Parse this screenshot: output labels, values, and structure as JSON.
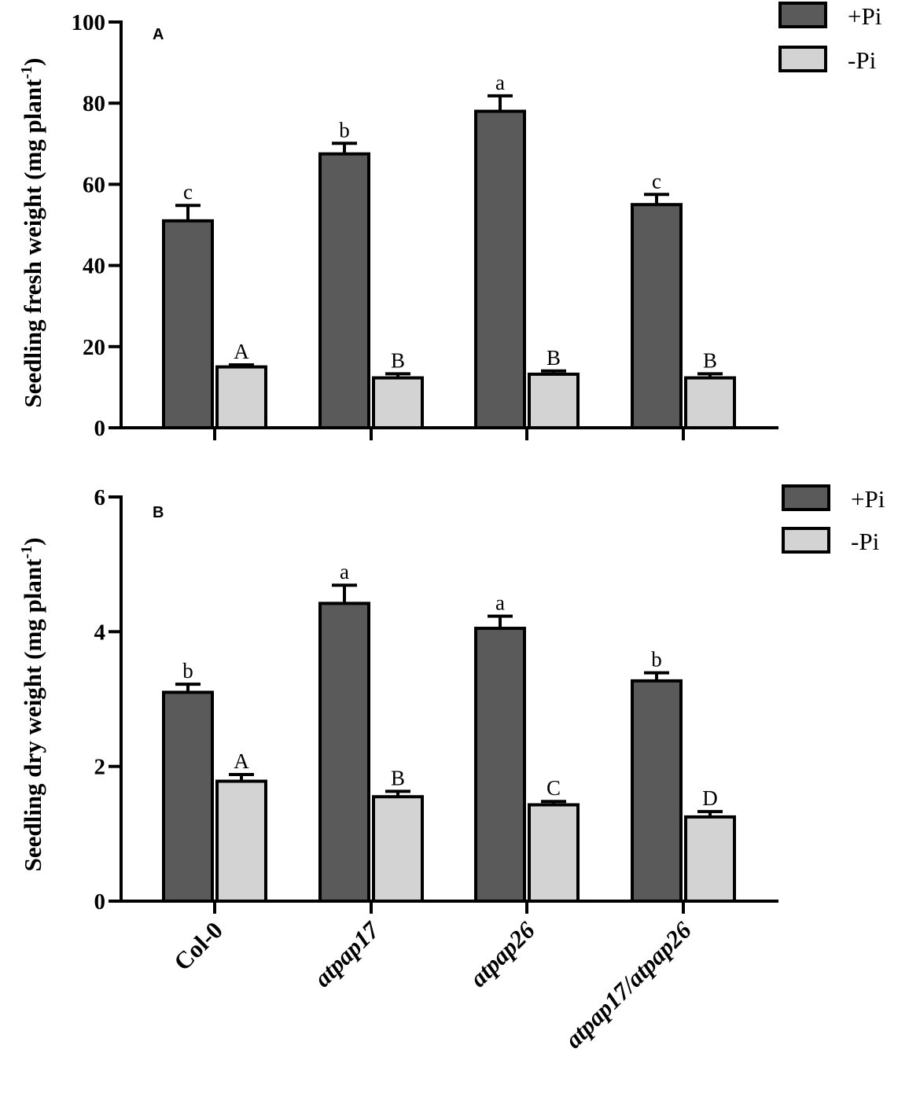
{
  "chart_data": [
    {
      "panel": "A",
      "type": "bar",
      "categories": [
        "Col-0",
        "atpap17",
        "atpap26",
        "atpap17/atpap26"
      ],
      "series": [
        {
          "name": "+Pi",
          "color": "#5a5a5a",
          "values": [
            51,
            67.5,
            78,
            55
          ],
          "errors": [
            3.8,
            2.6,
            3.8,
            2.5
          ],
          "letters": [
            "c",
            "b",
            "a",
            "c"
          ]
        },
        {
          "name": "-Pi",
          "color": "#d3d3d3",
          "values": [
            15,
            12.3,
            13.2,
            12.3
          ],
          "errors": [
            0.5,
            1.0,
            0.8,
            1.0
          ],
          "letters": [
            "A",
            "B",
            "B",
            "B"
          ]
        }
      ],
      "ylabel": "Seedling fresh weight (mg plant⁻¹)",
      "ylabel_main": "Seedling fresh weight (mg plant",
      "ylabel_sup": "-1",
      "ylabel_end": ")",
      "ylim": [
        0,
        100
      ],
      "yticks": [
        "0",
        "20",
        "40",
        "60",
        "80",
        "100"
      ],
      "legend": "top-right"
    },
    {
      "panel": "B",
      "type": "bar",
      "categories": [
        "Col-0",
        "atpap17",
        "atpap26",
        "atpap17/atpap26"
      ],
      "series": [
        {
          "name": "+Pi",
          "color": "#5a5a5a",
          "values": [
            3.1,
            4.42,
            4.05,
            3.27
          ],
          "errors": [
            0.12,
            0.27,
            0.18,
            0.12
          ],
          "letters": [
            "b",
            "a",
            "a",
            "b"
          ]
        },
        {
          "name": "-Pi",
          "color": "#d3d3d3",
          "values": [
            1.78,
            1.55,
            1.43,
            1.25
          ],
          "errors": [
            0.1,
            0.08,
            0.05,
            0.08
          ],
          "letters": [
            "A",
            "B",
            "C",
            "D"
          ]
        }
      ],
      "ylabel": "Seedling dry weight (mg plant⁻¹)",
      "ylabel_main": "Seedling dry weight (mg plant",
      "ylabel_sup": "-1",
      "ylabel_end": ")",
      "ylim": [
        0,
        6
      ],
      "yticks": [
        "0",
        "2",
        "4",
        "6"
      ],
      "legend": "top-right"
    }
  ],
  "category_labels": [
    "Col-0",
    "atpap17",
    "atpap26",
    "atpap17/atpap26"
  ],
  "category_italic": [
    false,
    true,
    true,
    true
  ]
}
